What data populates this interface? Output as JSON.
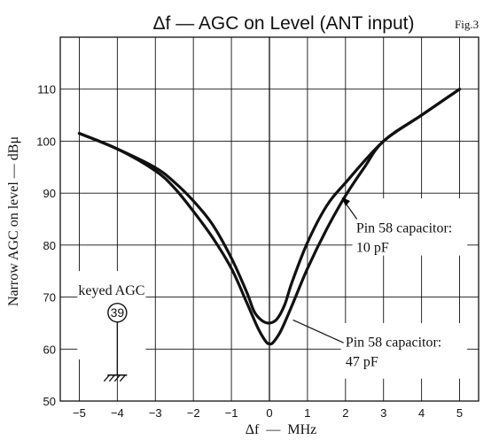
{
  "chart_data": {
    "type": "line",
    "title": "Δf — AGC on Level (ANT input)",
    "figure_label": "Fig.3",
    "xlabel": "Δf  —  MHz",
    "ylabel": "Narrow AGC on level — dBμ",
    "xlim": [
      -5.5,
      5.5
    ],
    "ylim": [
      50,
      120
    ],
    "x_ticks": [
      "−5",
      "−4",
      "−3",
      "−2",
      "−1",
      "0",
      "1",
      "2",
      "3",
      "4",
      "5"
    ],
    "x_tick_values": [
      -5,
      -4,
      -3,
      -2,
      -1,
      0,
      1,
      2,
      3,
      4,
      5
    ],
    "y_ticks": [
      "50",
      "60",
      "70",
      "80",
      "90",
      "100",
      "110"
    ],
    "y_tick_values": [
      50,
      60,
      70,
      80,
      90,
      100,
      110
    ],
    "grid": true,
    "series": [
      {
        "name": "Pin 58 capacitor:\n10 pF",
        "x": [
          -5,
          -4,
          -3,
          -2.5,
          -2,
          -1.5,
          -1,
          -0.6,
          -0.4,
          -0.2,
          0,
          0.2,
          0.4,
          0.6,
          1,
          1.5,
          2,
          3,
          4,
          5
        ],
        "y": [
          101.5,
          98.5,
          94.9,
          92.1,
          88.5,
          84,
          77.5,
          71,
          67.2,
          65.5,
          65,
          65.8,
          68.5,
          73,
          80.5,
          87.5,
          92,
          100,
          105,
          110
        ]
      },
      {
        "name": "Pin 58 capacitor:\n47 pF",
        "x": [
          -5,
          -4,
          -3,
          -2.5,
          -2,
          -1.5,
          -1,
          -0.6,
          -0.3,
          -0.1,
          0,
          0.1,
          0.3,
          0.6,
          1,
          1.5,
          2,
          2.5,
          3,
          4,
          5
        ],
        "y": [
          101.5,
          98.5,
          94.3,
          91,
          86.5,
          81.5,
          75.5,
          69,
          64,
          61.5,
          61,
          61.3,
          63.5,
          68.5,
          75.5,
          83,
          89.5,
          95,
          100,
          105,
          110
        ]
      }
    ],
    "annotations": [
      {
        "text": "keyed AGC",
        "x": -4.5,
        "y": 71.5
      },
      {
        "text": "Pin 58 capacitor:\n10 pF",
        "x": 2.25,
        "y": 83.5,
        "points_to": {
          "x": 1.9,
          "y": 88.8
        }
      },
      {
        "text": "Pin 58 capacitor:\n47 pF",
        "x": 2.0,
        "y": 61.5,
        "points_to": {
          "x": 0.55,
          "y": 66
        }
      }
    ],
    "keyed_agc_pin": "39"
  }
}
